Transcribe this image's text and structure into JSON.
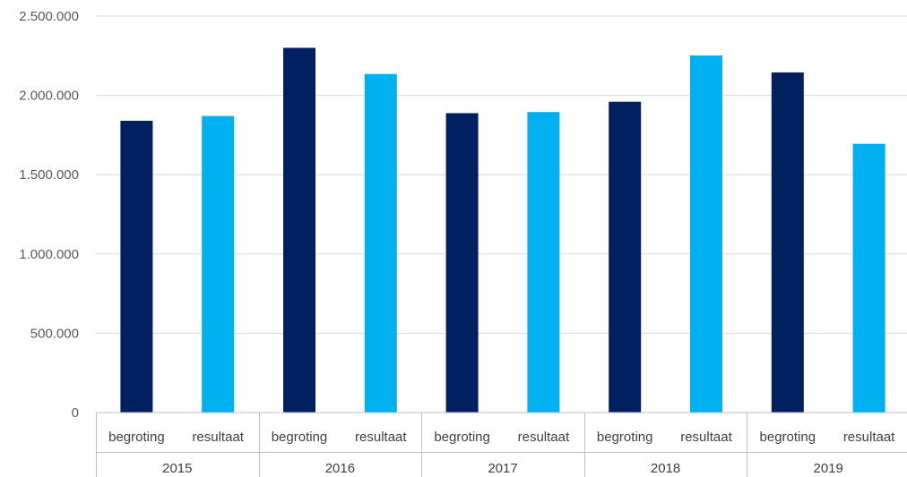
{
  "chart_data": {
    "type": "bar",
    "groups": [
      {
        "label": "2015",
        "bars": [
          {
            "label": "begroting",
            "value": 1840000,
            "color": "#002060"
          },
          {
            "label": "resultaat",
            "value": 1870000,
            "color": "#00B0F0"
          }
        ]
      },
      {
        "label": "2016",
        "bars": [
          {
            "label": "begroting",
            "value": 2300000,
            "color": "#002060"
          },
          {
            "label": "resultaat",
            "value": 2135000,
            "color": "#00B0F0"
          }
        ]
      },
      {
        "label": "2017",
        "bars": [
          {
            "label": "begroting",
            "value": 1888000,
            "color": "#002060"
          },
          {
            "label": "resultaat",
            "value": 1895000,
            "color": "#00B0F0"
          }
        ]
      },
      {
        "label": "2018",
        "bars": [
          {
            "label": "begroting",
            "value": 1960000,
            "color": "#002060"
          },
          {
            "label": "resultaat",
            "value": 2252000,
            "color": "#00B0F0"
          }
        ]
      },
      {
        "label": "2019",
        "bars": [
          {
            "label": "begroting",
            "value": 2145000,
            "color": "#002060"
          },
          {
            "label": "resultaat",
            "value": 1695000,
            "color": "#00B0F0"
          }
        ]
      }
    ],
    "y_ticks": [
      {
        "value": 0,
        "label": "0"
      },
      {
        "value": 500000,
        "label": "500.000"
      },
      {
        "value": 1000000,
        "label": "1.000.000"
      },
      {
        "value": 1500000,
        "label": "1.500.000"
      },
      {
        "value": 2000000,
        "label": "2.000.000"
      },
      {
        "value": 2500000,
        "label": "2.500.000"
      }
    ],
    "ylim": [
      0,
      2500000
    ],
    "grid": true,
    "legend": "none"
  }
}
